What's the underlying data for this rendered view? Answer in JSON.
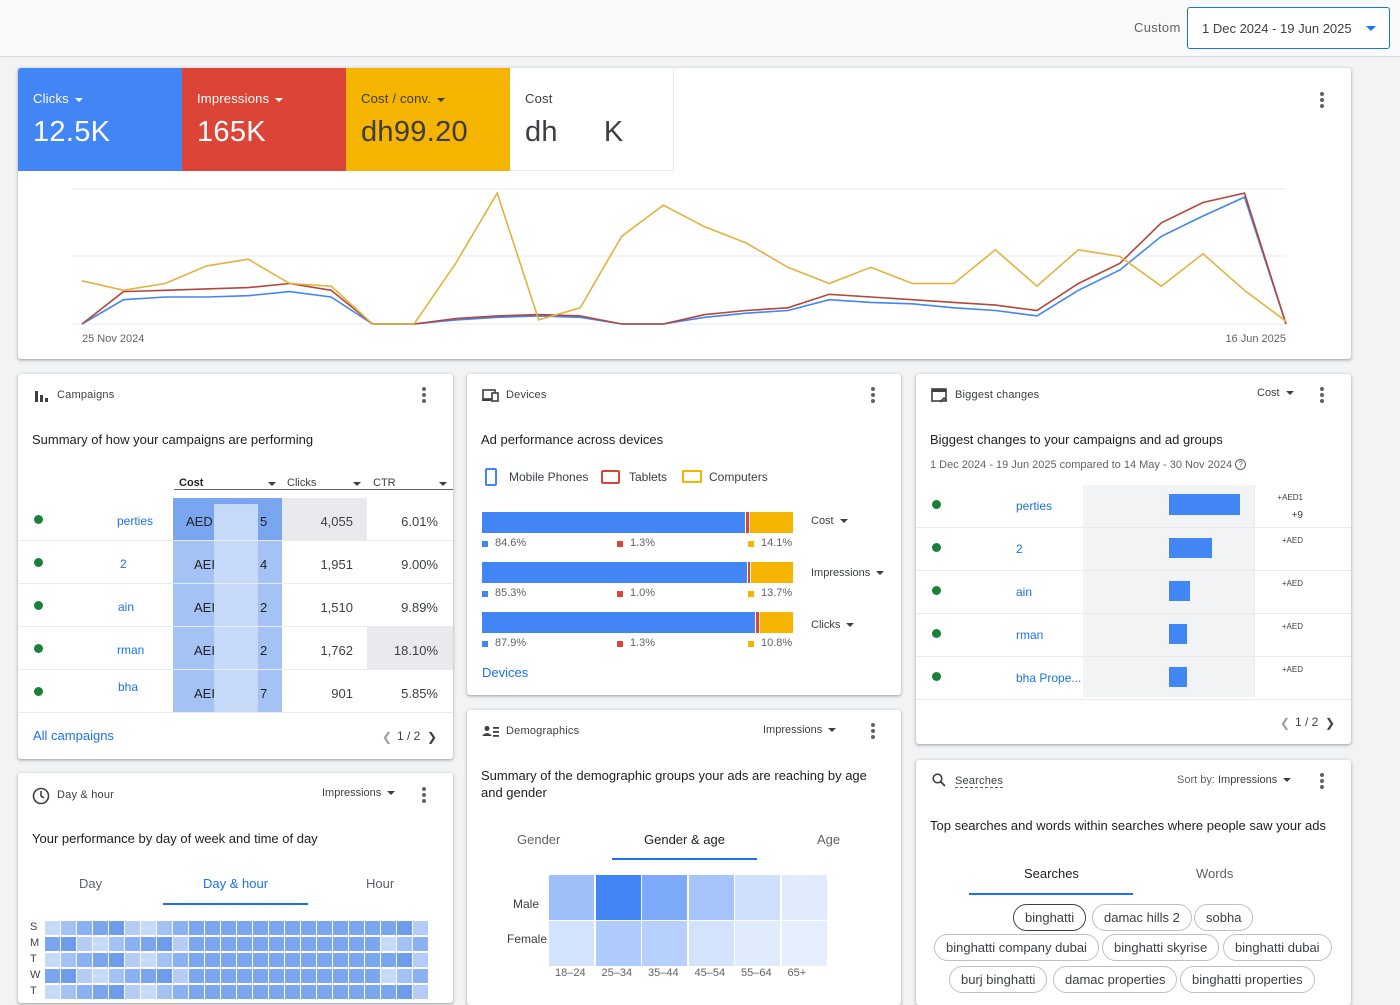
{
  "header": {
    "range_label": "Custom",
    "date_range": "1 Dec 2024 - 19 Jun 2025"
  },
  "overview": {
    "metrics": [
      {
        "label": "Clicks",
        "value": "12.5K",
        "color": "#4285f4"
      },
      {
        "label": "Impressions",
        "value": "165K",
        "color": "#db4437"
      },
      {
        "label": "Cost / conv.",
        "value": "dh99.20",
        "color": "#f4b400"
      },
      {
        "label": "Cost",
        "value_left": "dh",
        "value_right": "K"
      }
    ],
    "x_start": "25 Nov 2024",
    "x_end": "16 Jun 2025"
  },
  "chart_data": {
    "type": "line",
    "x": [
      "25 Nov 2024",
      "",
      "",
      "",
      "",
      "",
      "",
      "",
      "",
      "",
      "",
      "",
      "",
      "",
      "",
      "",
      "",
      "",
      "",
      "",
      "",
      "",
      "",
      "",
      "",
      "",
      "",
      "",
      "",
      "16 Jun 2025"
    ],
    "series": [
      {
        "color": "#4285f4",
        "values": [
          0.0,
          0.18,
          0.2,
          0.2,
          0.21,
          0.24,
          0.2,
          0.0,
          0.0,
          0.03,
          0.05,
          0.06,
          0.05,
          0.0,
          0.0,
          0.05,
          0.08,
          0.1,
          0.18,
          0.16,
          0.15,
          0.12,
          0.1,
          0.06,
          0.25,
          0.4,
          0.65,
          0.8,
          0.94,
          0.0
        ]
      },
      {
        "color": "#b3473d",
        "values": [
          0.0,
          0.24,
          0.25,
          0.26,
          0.27,
          0.3,
          0.25,
          0.0,
          0.0,
          0.04,
          0.06,
          0.07,
          0.06,
          0.0,
          0.0,
          0.07,
          0.1,
          0.12,
          0.22,
          0.2,
          0.18,
          0.16,
          0.14,
          0.1,
          0.3,
          0.45,
          0.75,
          0.9,
          0.97,
          0.0
        ]
      },
      {
        "color": "#e2b23e",
        "values": [
          0.32,
          0.25,
          0.3,
          0.43,
          0.48,
          0.3,
          0.28,
          0.0,
          0.0,
          0.45,
          0.97,
          0.03,
          0.12,
          0.65,
          0.88,
          0.72,
          0.6,
          0.42,
          0.3,
          0.42,
          0.3,
          0.3,
          0.55,
          0.28,
          0.55,
          0.5,
          0.28,
          0.52,
          0.25,
          0.02
        ]
      }
    ],
    "ylim": [
      0,
      1
    ],
    "grid": true
  },
  "campaigns": {
    "title": "Campaigns",
    "subtitle": "Summary of how your campaigns are performing",
    "columns": [
      "Cost",
      "Clicks",
      "CTR"
    ],
    "rows": [
      {
        "name": "perties",
        "cost_a": "AED",
        "cost_b": "5",
        "clicks": "4,055",
        "ctr": "6.01%"
      },
      {
        "name": "2",
        "cost_a": "AEI",
        "cost_b": "4",
        "clicks": "1,951",
        "ctr": "9.00%"
      },
      {
        "name": "ain",
        "cost_a": "AEI",
        "cost_b": "2",
        "clicks": "1,510",
        "ctr": "9.89%"
      },
      {
        "name": "rman",
        "cost_a": "AEI",
        "cost_b": "2",
        "clicks": "1,762",
        "ctr": "18.10%"
      },
      {
        "name": "bha",
        "cost_a": "AEI",
        "cost_b": "7",
        "clicks": "901",
        "ctr": "5.85%"
      }
    ],
    "link": "All campaigns",
    "page": "1 / 2"
  },
  "devices": {
    "title": "Devices",
    "subtitle": "Ad performance across devices",
    "legend": [
      "Mobile Phones",
      "Tablets",
      "Computers"
    ],
    "colors": [
      "#4285f4",
      "#db4437",
      "#f4b400"
    ],
    "bars": [
      {
        "metric": "Cost",
        "values": [
          84.6,
          1.3,
          14.1
        ],
        "labels": [
          "84.6%",
          "1.3%",
          "14.1%"
        ]
      },
      {
        "metric": "Impressions",
        "values": [
          85.3,
          1.0,
          13.7
        ],
        "labels": [
          "85.3%",
          "1.0%",
          "13.7%"
        ]
      },
      {
        "metric": "Clicks",
        "values": [
          87.9,
          1.3,
          10.8
        ],
        "labels": [
          "87.9%",
          "1.3%",
          "10.8%"
        ]
      }
    ],
    "link": "Devices"
  },
  "changes": {
    "title": "Biggest changes",
    "metric": "Cost",
    "subtitle": "Biggest changes to your campaigns and ad groups",
    "compare": "1 Dec 2024 - 19 Jun 2025 compared to 14 May - 30 Nov 2024",
    "rows": [
      {
        "name": "perties",
        "delta": "+AED1",
        "delta2": "+9",
        "value": 1.0
      },
      {
        "name": "2",
        "delta": "+AED",
        "value": 0.6
      },
      {
        "name": "ain",
        "delta": "+AED",
        "value": 0.3
      },
      {
        "name": "rman",
        "delta": "+AED",
        "value": 0.26
      },
      {
        "name": "bha Prope...",
        "delta": "+AED",
        "value": 0.25
      }
    ],
    "page": "1 / 2"
  },
  "dayhour": {
    "title": "Day & hour",
    "metric": "Impressions",
    "subtitle": "Your performance by day of week and time of day",
    "tabs": [
      "Day",
      "Day & hour",
      "Hour"
    ],
    "days": [
      "S",
      "M",
      "T",
      "W",
      "T"
    ]
  },
  "demographics": {
    "title": "Demographics",
    "metric": "Impressions",
    "subtitle": "Summary of the demographic groups your ads are reaching by age and gender",
    "tabs": [
      "Gender",
      "Gender & age",
      "Age"
    ],
    "rows": [
      "Male",
      "Female"
    ],
    "ages": [
      "18–24",
      "25–34",
      "35–44",
      "45–54",
      "55–64",
      "65+"
    ],
    "male": [
      0.45,
      1.0,
      0.65,
      0.4,
      0.15,
      0.05
    ],
    "female": [
      0.12,
      0.35,
      0.3,
      0.12,
      0.05,
      0.02
    ]
  },
  "searches": {
    "title": "Searches",
    "sort_label": "Sort by:",
    "sort_value": "Impressions",
    "subtitle": "Top searches and words within searches where people saw your ads",
    "tabs": [
      "Searches",
      "Words"
    ],
    "terms": [
      "binghatti",
      "damac hills 2",
      "sobha",
      "binghatti company dubai",
      "binghatti skyrise",
      "binghatti dubai",
      "burj binghatti",
      "damac properties",
      "binghatti properties"
    ]
  }
}
